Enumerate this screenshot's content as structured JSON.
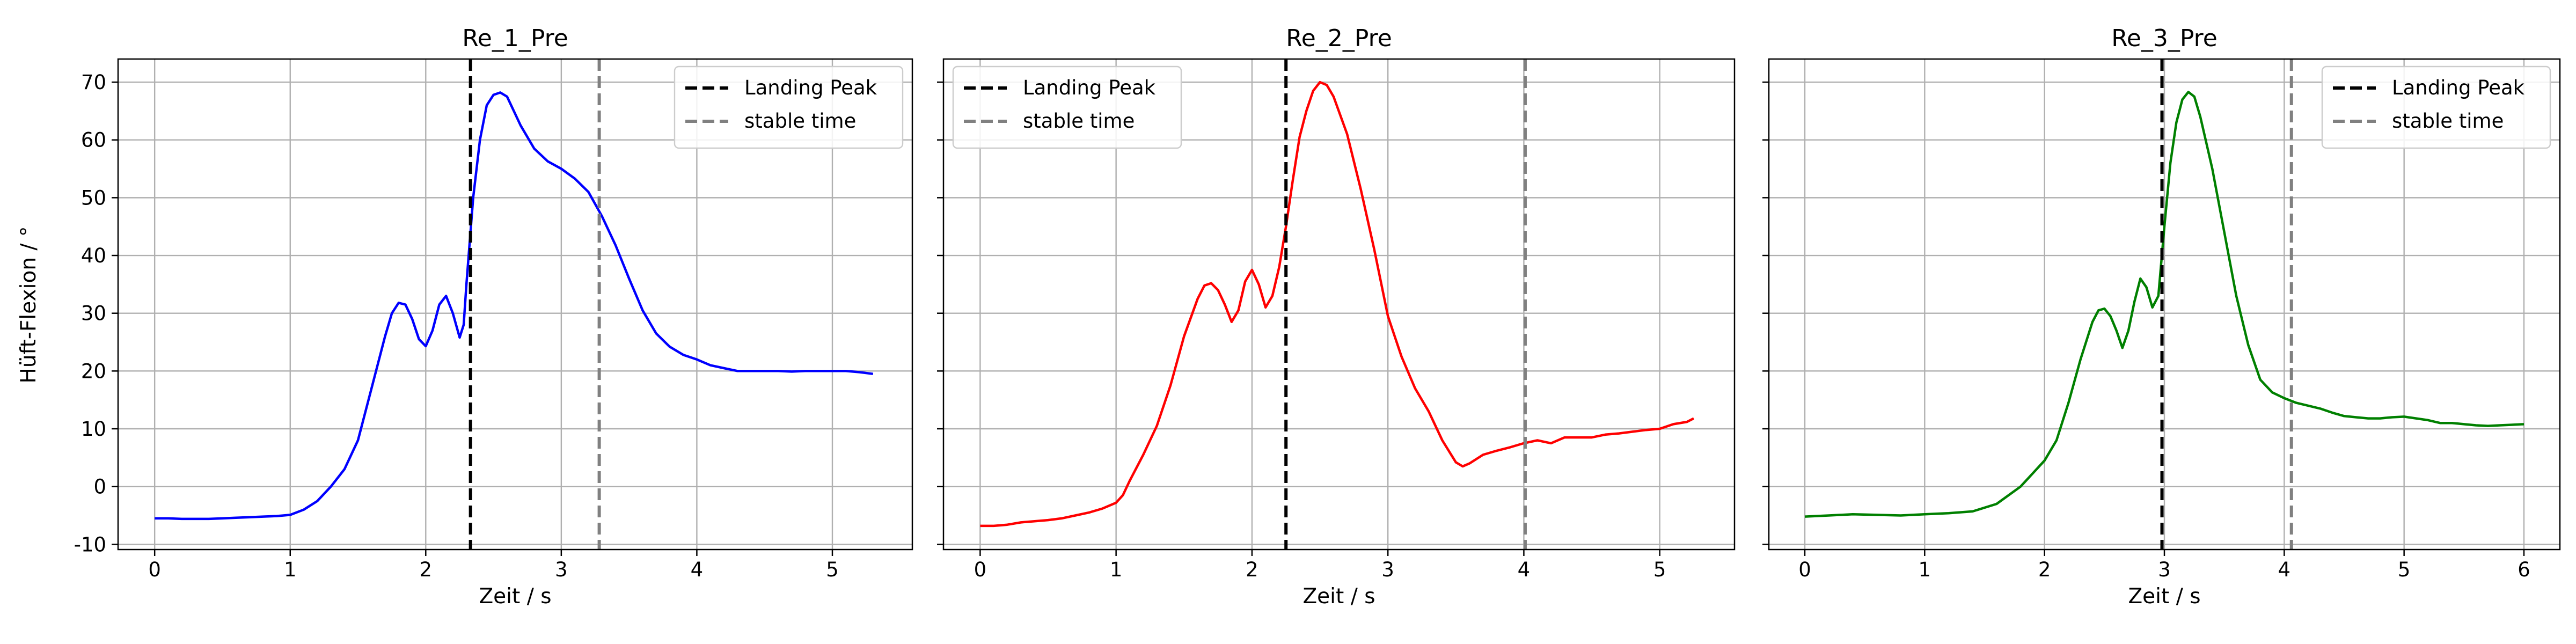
{
  "figure": {
    "ylabel": "Hüft-Flexion / °"
  },
  "chart_data": [
    {
      "type": "line",
      "title": "Re_1_Pre",
      "xlabel": "Zeit / s",
      "ylabel": "Hüft-Flexion / °",
      "xlim": [
        -0.27,
        5.59
      ],
      "ylim": [
        -10.9,
        74.0
      ],
      "xticks": [
        0,
        1,
        2,
        3,
        4,
        5
      ],
      "yticks": [
        -10,
        0,
        10,
        20,
        30,
        40,
        50,
        60,
        70
      ],
      "grid": true,
      "legend_position": "top-right",
      "series": [
        {
          "name": "",
          "color": "#0000ff",
          "x": [
            0.0,
            0.1,
            0.2,
            0.3,
            0.4,
            0.5,
            0.6,
            0.7,
            0.8,
            0.9,
            1.0,
            1.1,
            1.2,
            1.3,
            1.4,
            1.5,
            1.6,
            1.7,
            1.75,
            1.8,
            1.85,
            1.9,
            1.95,
            2.0,
            2.05,
            2.1,
            2.15,
            2.2,
            2.25,
            2.28,
            2.3,
            2.35,
            2.4,
            2.45,
            2.5,
            2.55,
            2.6,
            2.65,
            2.7,
            2.8,
            2.9,
            3.0,
            3.1,
            3.2,
            3.3,
            3.4,
            3.5,
            3.6,
            3.7,
            3.8,
            3.9,
            4.0,
            4.1,
            4.2,
            4.3,
            4.4,
            4.5,
            4.6,
            4.7,
            4.8,
            4.9,
            5.0,
            5.1,
            5.2,
            5.3
          ],
          "y": [
            -5.5,
            -5.5,
            -5.6,
            -5.6,
            -5.6,
            -5.5,
            -5.4,
            -5.3,
            -5.2,
            -5.1,
            -4.9,
            -4.0,
            -2.5,
            0.0,
            3.0,
            8.0,
            17.0,
            26.0,
            30.0,
            31.8,
            31.5,
            29.0,
            25.5,
            24.3,
            27.0,
            31.5,
            33.0,
            30.0,
            25.8,
            28.0,
            35.0,
            50.0,
            60.0,
            66.0,
            67.8,
            68.2,
            67.5,
            65.0,
            62.5,
            58.5,
            56.3,
            55.0,
            53.3,
            51.0,
            46.8,
            41.8,
            36.0,
            30.5,
            26.5,
            24.2,
            22.8,
            22.0,
            21.0,
            20.5,
            20.0,
            20.0,
            20.0,
            20.0,
            19.9,
            20.0,
            20.0,
            20.0,
            20.0,
            19.8,
            19.5
          ]
        }
      ],
      "landing_peak": 2.33,
      "stable_time": 3.28,
      "annotations": [
        {
          "label": "Landing Peak",
          "x": 2.33,
          "color": "#000000",
          "style": "dashed"
        },
        {
          "label": "stable time",
          "x": 3.28,
          "color": "#808080",
          "style": "dashed"
        }
      ],
      "legend": [
        {
          "label": "Landing Peak",
          "color": "#000000"
        },
        {
          "label": "stable time",
          "color": "#808080"
        }
      ]
    },
    {
      "type": "line",
      "title": "Re_2_Pre",
      "xlabel": "Zeit / s",
      "ylabel": "",
      "xlim": [
        -0.27,
        5.55
      ],
      "ylim": [
        -10.9,
        74.0
      ],
      "xticks": [
        0,
        1,
        2,
        3,
        4,
        5
      ],
      "yticks": [
        -10,
        0,
        10,
        20,
        30,
        40,
        50,
        60,
        70
      ],
      "grid": true,
      "legend_position": "top-left",
      "series": [
        {
          "name": "",
          "color": "#ff0000",
          "x": [
            0.0,
            0.1,
            0.2,
            0.3,
            0.4,
            0.5,
            0.6,
            0.7,
            0.8,
            0.9,
            1.0,
            1.05,
            1.1,
            1.2,
            1.3,
            1.4,
            1.5,
            1.6,
            1.65,
            1.7,
            1.75,
            1.8,
            1.85,
            1.9,
            1.95,
            2.0,
            2.05,
            2.1,
            2.15,
            2.2,
            2.25,
            2.3,
            2.35,
            2.4,
            2.45,
            2.5,
            2.55,
            2.6,
            2.7,
            2.8,
            2.9,
            3.0,
            3.1,
            3.2,
            3.3,
            3.4,
            3.5,
            3.55,
            3.6,
            3.7,
            3.8,
            3.9,
            4.0,
            4.1,
            4.2,
            4.3,
            4.4,
            4.5,
            4.6,
            4.7,
            4.8,
            4.9,
            5.0,
            5.1,
            5.2,
            5.25
          ],
          "y": [
            -6.8,
            -6.8,
            -6.6,
            -6.2,
            -6.0,
            -5.8,
            -5.5,
            -5.0,
            -4.5,
            -3.8,
            -2.8,
            -1.5,
            1.0,
            5.5,
            10.5,
            17.5,
            26.0,
            32.5,
            34.8,
            35.2,
            34.0,
            31.5,
            28.5,
            30.5,
            35.5,
            37.5,
            35.0,
            31.0,
            33.0,
            38.0,
            45.0,
            53.0,
            60.5,
            65.0,
            68.5,
            70.0,
            69.5,
            67.5,
            61.0,
            51.5,
            41.0,
            29.5,
            22.5,
            17.0,
            13.0,
            8.0,
            4.2,
            3.5,
            4.0,
            5.5,
            6.2,
            6.8,
            7.5,
            8.0,
            7.5,
            8.5,
            8.5,
            8.5,
            9.0,
            9.2,
            9.5,
            9.8,
            10.0,
            10.8,
            11.2,
            11.8
          ]
        }
      ],
      "landing_peak": 2.25,
      "stable_time": 4.01,
      "annotations": [
        {
          "label": "Landing Peak",
          "x": 2.25,
          "color": "#000000",
          "style": "dashed"
        },
        {
          "label": "stable time",
          "x": 4.01,
          "color": "#808080",
          "style": "dashed"
        }
      ],
      "legend": [
        {
          "label": "Landing Peak",
          "color": "#000000"
        },
        {
          "label": "stable time",
          "color": "#808080"
        }
      ]
    },
    {
      "type": "line",
      "title": "Re_3_Pre",
      "xlabel": "Zeit / s",
      "ylabel": "",
      "xlim": [
        -0.3,
        6.3
      ],
      "ylim": [
        -10.9,
        74.0
      ],
      "xticks": [
        0,
        1,
        2,
        3,
        4,
        5,
        6
      ],
      "yticks": [
        -10,
        0,
        10,
        20,
        30,
        40,
        50,
        60,
        70
      ],
      "grid": true,
      "legend_position": "top-right",
      "series": [
        {
          "name": "",
          "color": "#008000",
          "x": [
            0.0,
            0.2,
            0.4,
            0.6,
            0.8,
            1.0,
            1.2,
            1.4,
            1.6,
            1.8,
            2.0,
            2.1,
            2.2,
            2.3,
            2.4,
            2.45,
            2.5,
            2.55,
            2.6,
            2.65,
            2.7,
            2.75,
            2.8,
            2.85,
            2.9,
            2.95,
            3.0,
            3.05,
            3.1,
            3.15,
            3.2,
            3.25,
            3.3,
            3.4,
            3.5,
            3.6,
            3.7,
            3.8,
            3.9,
            4.0,
            4.1,
            4.2,
            4.3,
            4.4,
            4.5,
            4.6,
            4.7,
            4.8,
            4.9,
            5.0,
            5.1,
            5.2,
            5.3,
            5.4,
            5.5,
            5.6,
            5.7,
            5.8,
            5.9,
            6.0
          ],
          "y": [
            -5.2,
            -5.0,
            -4.8,
            -4.9,
            -5.0,
            -4.8,
            -4.6,
            -4.3,
            -3.0,
            0.0,
            4.5,
            8.0,
            14.5,
            22.0,
            28.5,
            30.5,
            30.8,
            29.5,
            27.0,
            24.0,
            27.0,
            32.0,
            36.0,
            34.5,
            31.0,
            33.0,
            45.0,
            56.0,
            63.0,
            67.0,
            68.3,
            67.5,
            64.0,
            55.0,
            44.0,
            33.0,
            24.5,
            18.5,
            16.3,
            15.3,
            14.5,
            14.0,
            13.5,
            12.8,
            12.2,
            12.0,
            11.8,
            11.8,
            12.0,
            12.1,
            11.8,
            11.5,
            11.0,
            11.0,
            10.8,
            10.6,
            10.5,
            10.6,
            10.7,
            10.8
          ]
        }
      ],
      "landing_peak": 2.98,
      "stable_time": 4.06,
      "annotations": [
        {
          "label": "Landing Peak",
          "x": 2.98,
          "color": "#000000",
          "style": "dashed"
        },
        {
          "label": "stable time",
          "x": 4.06,
          "color": "#808080",
          "style": "dashed"
        }
      ],
      "legend": [
        {
          "label": "Landing Peak",
          "color": "#000000"
        },
        {
          "label": "stable time",
          "color": "#808080"
        }
      ]
    }
  ]
}
